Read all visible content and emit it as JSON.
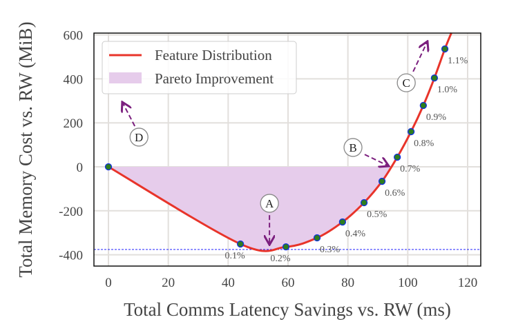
{
  "chart_data": {
    "type": "line",
    "xlabel": "Total Comms Latency Savings vs. RW (ms)",
    "ylabel": "Total Memory Cost vs. RW (MiB)",
    "xlim": [
      -5,
      125
    ],
    "ylim": [
      -450,
      610
    ],
    "xticks": [
      0,
      20,
      40,
      60,
      80,
      100,
      120
    ],
    "yticks": [
      -400,
      -200,
      0,
      200,
      400,
      600
    ],
    "grid": true,
    "legend": {
      "placement": "top-left",
      "entries": [
        "Feature Distribution",
        "Pareto Improvement"
      ]
    },
    "series": [
      {
        "name": "Feature Distribution",
        "color": "#e8342a",
        "points": [
          {
            "x": 0,
            "y": 0,
            "label": ""
          },
          {
            "x": 44.1,
            "y": -351,
            "label": "0.1%"
          },
          {
            "x": 59.3,
            "y": -364,
            "label": "0.2%"
          },
          {
            "x": 69.7,
            "y": -323,
            "label": "0.3%"
          },
          {
            "x": 78.2,
            "y": -251,
            "label": "0.4%"
          },
          {
            "x": 85.4,
            "y": -163,
            "label": "0.5%"
          },
          {
            "x": 91.4,
            "y": -66,
            "label": "0.6%"
          },
          {
            "x": 96.5,
            "y": 44,
            "label": "0.7%"
          },
          {
            "x": 101.1,
            "y": 160,
            "label": "0.8%"
          },
          {
            "x": 105.2,
            "y": 279,
            "label": "0.9%"
          },
          {
            "x": 108.9,
            "y": 404,
            "label": "1.0%"
          },
          {
            "x": 112.4,
            "y": 536,
            "label": "1.1%"
          }
        ],
        "curve_end": {
          "x": 114.6,
          "y": 610
        }
      }
    ],
    "pareto_fill_color": "#e6cceb",
    "reference_line": {
      "y": -376,
      "color": "#0000ff"
    },
    "annotations": [
      {
        "text": "A",
        "x": 53.8,
        "y": -166,
        "from": [
          53.8,
          -220
        ],
        "to": [
          53.8,
          -355
        ]
      },
      {
        "text": "B",
        "x": 81.7,
        "y": 88,
        "from": [
          85.6,
          56
        ],
        "to": [
          93.7,
          3
        ]
      },
      {
        "text": "C",
        "x": 99.5,
        "y": 382,
        "from": [
          101.8,
          433
        ],
        "to": [
          106.6,
          571
        ]
      },
      {
        "text": "D",
        "x": 10.2,
        "y": 135,
        "from": [
          8.8,
          185
        ],
        "to": [
          4.6,
          295
        ]
      }
    ]
  }
}
